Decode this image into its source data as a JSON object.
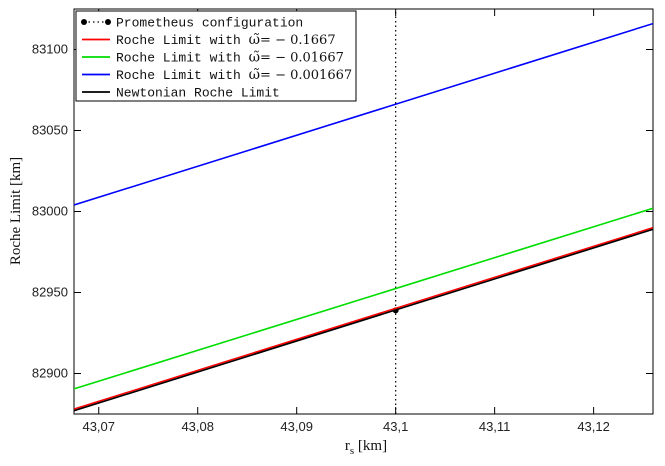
{
  "chart_data": {
    "type": "line",
    "xlabel": "r",
    "xlabel_sub": "s",
    "xlabel_unit": " [km]",
    "ylabel": "Roche Limit [km]",
    "xlim": [
      43.0675,
      43.126
    ],
    "ylim": [
      82875,
      83125
    ],
    "x_ticks": [
      43.07,
      43.08,
      43.09,
      43.1,
      43.11,
      43.12
    ],
    "x_tick_labels": [
      "43,07",
      "43,08",
      "43,09",
      "43,1",
      "43,11",
      "43,12"
    ],
    "y_ticks": [
      82900,
      82950,
      83000,
      83050,
      83100
    ],
    "y_tick_labels": [
      "82900",
      "82950",
      "83000",
      "83050",
      "83100"
    ],
    "grid": false,
    "legend_position": "top-left",
    "series": [
      {
        "name": "Prometheus configuration",
        "style": "dotted-with-markers",
        "color": "#000000",
        "points": [
          [
            43.1,
            82875
          ],
          [
            43.1,
            83125
          ]
        ],
        "marker": [
          43.1,
          82939
        ]
      },
      {
        "name": "Roche Limit with ",
        "name_symbol": "ω̃",
        "name_value": "= − 0.1667",
        "color": "#ff0000",
        "points": [
          [
            43.0675,
            82878.0
          ],
          [
            43.126,
            82990.0
          ]
        ]
      },
      {
        "name": "Roche Limit with ",
        "name_symbol": "ω̃",
        "name_value": "= − 0.01667",
        "color": "#00dd00",
        "points": [
          [
            43.0675,
            82890.5
          ],
          [
            43.126,
            83002.0
          ]
        ]
      },
      {
        "name": "Roche Limit with ",
        "name_symbol": "ω̃",
        "name_value": "= − 0.001667",
        "color": "#0000ff",
        "points": [
          [
            43.0675,
            83004.0
          ],
          [
            43.126,
            83116.0
          ]
        ]
      },
      {
        "name": "Newtonian Roche Limit",
        "color": "#000000",
        "points": [
          [
            43.0675,
            82877.0
          ],
          [
            43.126,
            82989.0
          ]
        ]
      }
    ]
  }
}
